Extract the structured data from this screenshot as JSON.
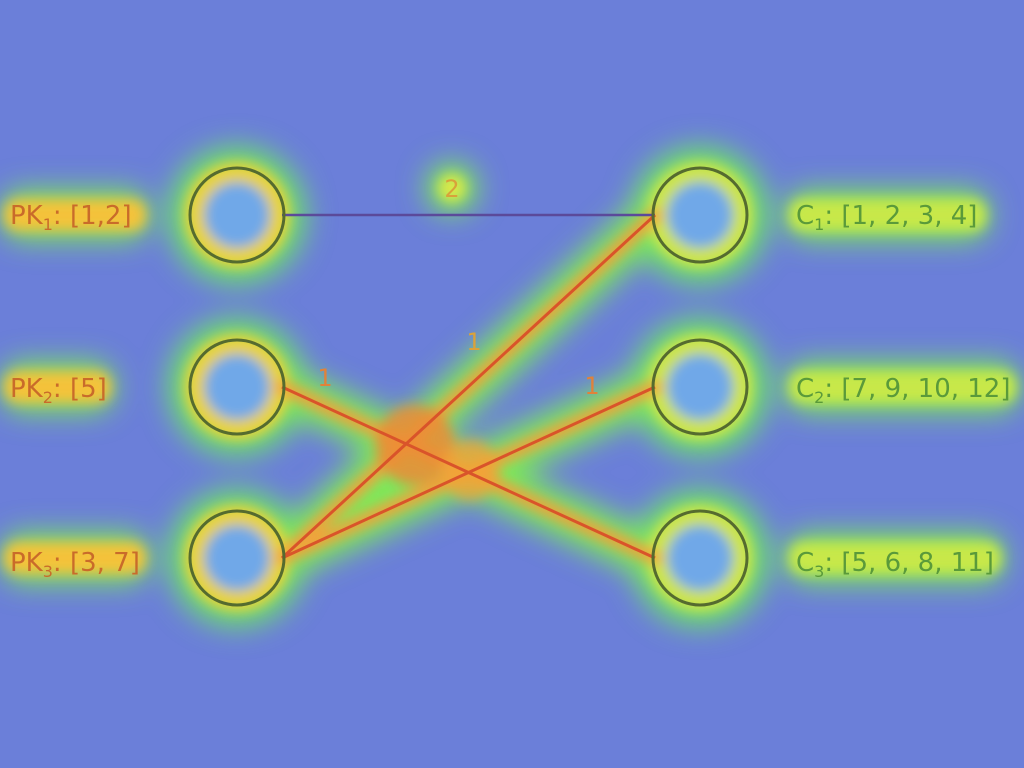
{
  "left_nodes": [
    {
      "id": "PK1",
      "prefix": "PK",
      "sub": "1",
      "values": ": [1,2]"
    },
    {
      "id": "PK2",
      "prefix": "PK",
      "sub": "2",
      "values": ": [5]"
    },
    {
      "id": "PK3",
      "prefix": "PK",
      "sub": "3",
      "values": ": [3, 7]"
    }
  ],
  "right_nodes": [
    {
      "id": "C1",
      "prefix": "C",
      "sub": "1",
      "values": ": [1, 2, 3, 4]"
    },
    {
      "id": "C2",
      "prefix": "C",
      "sub": "2",
      "values": ": [7, 9, 10, 12]"
    },
    {
      "id": "C3",
      "prefix": "C",
      "sub": "3",
      "values": ": [5, 6, 8, 11]"
    }
  ],
  "edges": [
    {
      "from": "PK1",
      "to": "C1",
      "weight": "2"
    },
    {
      "from": "PK3",
      "to": "C1",
      "weight": "1"
    },
    {
      "from": "PK2",
      "to": "C3",
      "weight": "1"
    },
    {
      "from": "PK3",
      "to": "C2",
      "weight": "1"
    }
  ],
  "colors": {
    "background": "#6b7fd9",
    "left_label": "#c96b2a",
    "right_label": "#5a9a3a",
    "node_ring": "#556b2f"
  }
}
